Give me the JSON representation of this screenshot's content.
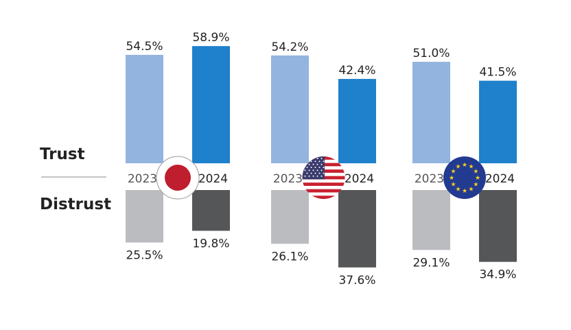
{
  "chart_data": {
    "type": "bar",
    "row_labels": {
      "trust": "Trust",
      "distrust": "Distrust"
    },
    "years": [
      "2023",
      "2024"
    ],
    "groups": [
      {
        "name": "Japan",
        "flag": "japan-flag",
        "trust": [
          54.5,
          58.9
        ],
        "distrust": [
          25.5,
          19.8
        ],
        "trust_labels": [
          "54.5%",
          "58.9%"
        ],
        "distrust_labels": [
          "25.5%",
          "19.8%"
        ]
      },
      {
        "name": "United States",
        "flag": "us-flag",
        "trust": [
          54.2,
          42.4
        ],
        "distrust": [
          26.1,
          37.6
        ],
        "trust_labels": [
          "54.2%",
          "42.4%"
        ],
        "distrust_labels": [
          "26.1%",
          "37.6%"
        ]
      },
      {
        "name": "European Union",
        "flag": "eu-flag",
        "trust": [
          51.0,
          41.5
        ],
        "distrust": [
          29.1,
          34.9
        ],
        "trust_labels": [
          "51.0%",
          "41.5%"
        ],
        "distrust_labels": [
          "29.1%",
          "34.9%"
        ]
      }
    ],
    "colors": {
      "trust_2023": "#93b4de",
      "trust_2024": "#1f80cb",
      "distrust_2023": "#bbbcbf",
      "distrust_2024": "#555658"
    }
  }
}
